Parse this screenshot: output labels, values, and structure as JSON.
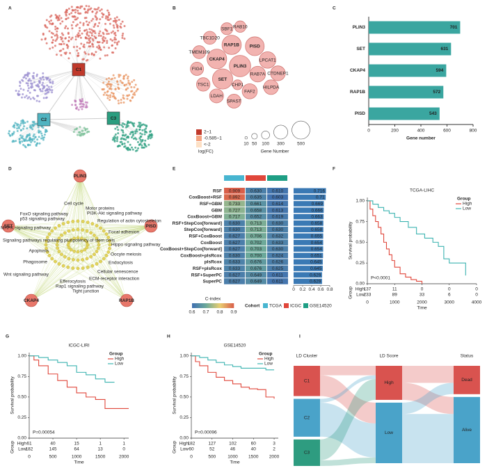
{
  "networks": [
    {
      "panel": "A",
      "clusters": [
        "C1",
        "C2",
        "C3"
      ]
    },
    {
      "panel": "D",
      "hubs": [
        "PLIN3",
        "SET",
        "PISD",
        "CKAP4",
        "RAP1B"
      ],
      "pathways": [
        "Cell cycle",
        "Motor proteins",
        "PI3K-Akt signaling pathway",
        "FoxO signaling pathway",
        "p53 signaling pathway",
        "Regulation of actin cytoskeleton",
        "MAPK signaling pathway",
        "Focal adhesion",
        "Signaling pathways regulating pluripotency of stem cells",
        "Hippo signaling pathway",
        "Apoptosis",
        "Oocyte meiosis",
        "Endocytosis",
        "Phagosome",
        "Cellular senescence",
        "Wnt signaling pathway",
        "Efferocytosis",
        "ECM-receptor interaction",
        "Rap1 signaling pathway",
        "Tight junction"
      ]
    }
  ],
  "chart_data": [
    {
      "type": "bubble",
      "panel": "B",
      "color": "#f2b3b0",
      "categories": [
        "PLIN3",
        "SET",
        "CKAP4",
        "RAP1B",
        "PISD",
        "LPCAT1",
        "RAB7A",
        "FAF2",
        "CTDNEP1",
        "HILPDA",
        "SPAST",
        "LDAH",
        "TSC1",
        "FIG4",
        "TMEM109",
        "TBC1D20",
        "SBF1",
        "RAB10",
        "CHP1"
      ],
      "values": [
        701,
        631,
        594,
        572,
        543,
        420,
        380,
        350,
        340,
        330,
        300,
        300,
        280,
        270,
        260,
        260,
        220,
        200,
        150
      ],
      "color_legend": {
        "title": "log(FC)",
        "labels": [
          "2~1",
          "-0.585~1",
          "<-2"
        ],
        "colors": [
          "#c0392b",
          "#f4a582",
          "#fde0c5"
        ]
      },
      "size_legend": {
        "title": "Gene Number",
        "values": [
          10,
          50,
          100,
          300,
          500
        ]
      }
    },
    {
      "type": "bar",
      "panel": "C",
      "orientation": "horizontal",
      "color": "#3aa6a0",
      "categories": [
        "PLIN3",
        "SET",
        "CKAP4",
        "RAP1B",
        "PISD"
      ],
      "values": [
        701,
        631,
        594,
        572,
        543
      ],
      "xlim": [
        0,
        800
      ],
      "xticks": [
        0,
        200,
        400,
        600,
        800
      ],
      "xlabel": "Gene number"
    },
    {
      "type": "heatmap",
      "panel": "E",
      "categories": [
        "RSF",
        "CoxBoost+RSF",
        "RSF+GBM",
        "GBM",
        "CoxBoost+GBM",
        "RSF+StepCox[forward]",
        "StepCox[forward]",
        "RSF+CoxBoost",
        "CoxBoost",
        "CoxBoost+StepCox[forward]",
        "CoxBoost+plsRcox",
        "plsRcox",
        "RSF+plsRcox",
        "RSF+SuperPC",
        "SuperPC"
      ],
      "series": [
        {
          "name": "TCGA",
          "color": "#47b5d0",
          "values": [
            0.909,
            0.892,
            0.733,
            0.727,
            0.717,
            0.63,
            0.63,
            0.627,
            0.627,
            0.627,
            0.63,
            0.633,
            0.633,
            0.627,
            0.627
          ],
          "value_labels": [
            "0.909",
            "0.892",
            "0.733",
            "0.727",
            "0.717",
            "0.630",
            "0.630",
            "0.627",
            "0.627",
            "0.627",
            "0.630",
            "0.633",
            "0.633",
            "0.627",
            "0.627"
          ]
        },
        {
          "name": "ICGC",
          "color": "#e0463a",
          "values": [
            0.63,
            0.635,
            0.661,
            0.658,
            0.652,
            0.713,
            0.713,
            0.706,
            0.702,
            0.703,
            0.7,
            0.676,
            0.676,
            0.649,
            0.649
          ],
          "value_labels": [
            "0.630",
            "0.635",
            "0.661",
            "0.658",
            "0.652",
            "0.713",
            "0.713",
            "0.706",
            "0.702",
            "0.703",
            "0.700",
            "0.676",
            "0.676",
            "0.649",
            "0.649"
          ]
        },
        {
          "name": "GSE14520",
          "color": "#1e9e84",
          "values": [
            0.61,
            0.603,
            0.614,
            0.613,
            0.619,
            0.63,
            0.63,
            0.632,
            0.633,
            0.63,
            0.624,
            0.626,
            0.625,
            0.611,
            0.611
          ],
          "value_labels": [
            "0.610",
            "0.603",
            "0.614",
            "0.613",
            "0.619",
            "0.630",
            "0.630",
            "0.632",
            "0.633",
            "0.630",
            "0.624",
            "0.626",
            "0.625",
            "0.611",
            "0.611"
          ]
        }
      ],
      "bars": {
        "color": "#3a79b4",
        "values": [
          0.716,
          0.71,
          0.669,
          0.666,
          0.663,
          0.658,
          0.658,
          0.655,
          0.654,
          0.654,
          0.651,
          0.645,
          0.645,
          0.629,
          0.629
        ]
      },
      "xlim": [
        0,
        0.8
      ],
      "xticks": [
        0,
        0.2,
        0.4,
        0.6,
        0.8
      ],
      "colorbar_title": "C-index",
      "clim": [
        0.6,
        0.9
      ],
      "cticks": [
        0.6,
        0.7,
        0.8,
        0.9
      ],
      "colorscale": [
        "#3f6fb0",
        "#6aa89a",
        "#e9cf72",
        "#d95f4a"
      ],
      "legend_title": "Cohort"
    },
    {
      "type": "km",
      "panel": "F",
      "title": "TCGA-LIHC",
      "legend_title": "Group",
      "pvalue": "P<0.0001",
      "xlabel": "Time",
      "ylabel": "Survival probability",
      "xlim": [
        0,
        4000
      ],
      "xticks": [
        0,
        1000,
        2000,
        3000,
        4000
      ],
      "ylim": [
        0,
        1.04
      ],
      "yticks": [
        {
          "value": 0,
          "label": "0.00"
        },
        {
          "value": 0.25,
          "label": "0.25"
        },
        {
          "value": 0.5,
          "label": "0.50"
        },
        {
          "value": 0.75,
          "label": "0.75"
        },
        {
          "value": 1,
          "label": "1.00"
        }
      ],
      "series": [
        {
          "name": "High",
          "color": "#e0463a",
          "x": [
            0,
            100,
            200,
            300,
            400,
            500,
            600,
            700,
            800,
            900,
            1000,
            1200,
            1400,
            1600,
            1800,
            2000
          ],
          "values": [
            1,
            0.9,
            0.82,
            0.75,
            0.68,
            0.6,
            0.5,
            0.42,
            0.35,
            0.28,
            0.2,
            0.12,
            0.08,
            0.05,
            0.03,
            0
          ],
          "at_risk": [
            137,
            11,
            0,
            0,
            0
          ]
        },
        {
          "name": "Low",
          "color": "#3bb3b0",
          "x": [
            0,
            200,
            400,
            600,
            800,
            1000,
            1200,
            1500,
            1800,
            2100,
            2400,
            2600,
            2800,
            3000,
            3300,
            3600
          ],
          "values": [
            1,
            0.96,
            0.92,
            0.88,
            0.85,
            0.8,
            0.75,
            0.68,
            0.6,
            0.55,
            0.5,
            0.45,
            0.3,
            0.25,
            0.25,
            0.1
          ],
          "at_risk": [
            233,
            89,
            33,
            6,
            0
          ]
        }
      ]
    },
    {
      "type": "km",
      "panel": "G",
      "title": "ICGC-LIRI",
      "legend_title": "Group",
      "pvalue": "P=0.00054",
      "xlabel": "Time",
      "ylabel": "Survival probability",
      "xlim": [
        0,
        2100
      ],
      "xticks": [
        0,
        500,
        1000,
        1500,
        2000
      ],
      "ylim": [
        0,
        1.04
      ],
      "yticks": [
        {
          "value": 0,
          "label": "0.00"
        },
        {
          "value": 0.25,
          "label": "0.25"
        },
        {
          "value": 0.5,
          "label": "0.50"
        },
        {
          "value": 0.75,
          "label": "0.75"
        },
        {
          "value": 1,
          "label": "1.00"
        }
      ],
      "series": [
        {
          "name": "High",
          "color": "#e0463a",
          "x": [
            0,
            100,
            200,
            400,
            600,
            800,
            1000,
            1200,
            1400,
            1500,
            1600,
            2100
          ],
          "values": [
            1,
            0.95,
            0.88,
            0.78,
            0.7,
            0.62,
            0.55,
            0.5,
            0.47,
            0.47,
            0.36,
            0.36
          ],
          "at_risk": [
            61,
            40,
            15,
            1,
            1
          ]
        },
        {
          "name": "Low",
          "color": "#3bb3b0",
          "x": [
            0,
            200,
            400,
            600,
            800,
            1000,
            1200,
            1400,
            1600,
            1800
          ],
          "values": [
            1,
            0.98,
            0.95,
            0.92,
            0.88,
            0.8,
            0.77,
            0.72,
            0.68,
            0.68
          ],
          "at_risk": [
            182,
            145,
            64,
            13,
            0
          ]
        }
      ]
    },
    {
      "type": "km",
      "panel": "H",
      "title": "GSE14520",
      "legend_title": "Group",
      "pvalue": "P=0.00096",
      "xlabel": "Time",
      "ylabel": "Survival probability",
      "xlim": [
        0,
        2100
      ],
      "xticks": [
        0,
        500,
        1000,
        1500,
        2000
      ],
      "ylim": [
        0,
        1.04
      ],
      "yticks": [
        {
          "value": 0,
          "label": "0.00"
        },
        {
          "value": 0.25,
          "label": "0.25"
        },
        {
          "value": 0.5,
          "label": "0.50"
        },
        {
          "value": 0.75,
          "label": "0.75"
        },
        {
          "value": 1,
          "label": "1.00"
        }
      ],
      "series": [
        {
          "name": "High",
          "color": "#e0463a",
          "x": [
            0,
            100,
            200,
            400,
            600,
            800,
            1000,
            1200,
            1400,
            1600,
            1800,
            2000
          ],
          "values": [
            1,
            0.93,
            0.88,
            0.8,
            0.74,
            0.7,
            0.66,
            0.62,
            0.6,
            0.59,
            0.5,
            0.48
          ],
          "at_risk": [
            182,
            127,
            102,
            60,
            3
          ]
        },
        {
          "name": "Low",
          "color": "#3bb3b0",
          "x": [
            0,
            200,
            400,
            600,
            800,
            1000,
            1200,
            1400,
            1600,
            1800,
            2000
          ],
          "values": [
            1,
            0.98,
            0.95,
            0.92,
            0.89,
            0.87,
            0.85,
            0.85,
            0.85,
            0.83,
            0.83
          ],
          "at_risk": [
            60,
            52,
            46,
            40,
            2
          ]
        }
      ]
    },
    {
      "type": "sankey",
      "panel": "I",
      "columns": [
        {
          "name": "LD Cluster",
          "nodes": [
            {
              "name": "C1",
              "color": "#d9534f"
            },
            {
              "name": "C2",
              "color": "#4aa3c9"
            },
            {
              "name": "C3",
              "color": "#2e9c80"
            }
          ]
        },
        {
          "name": "LD Score",
          "nodes": [
            {
              "name": "High",
              "color": "#d9534f"
            },
            {
              "name": "Low",
              "color": "#4aa3c9"
            }
          ]
        },
        {
          "name": "Status",
          "nodes": [
            {
              "name": "Dead",
              "color": "#d9534f"
            },
            {
              "name": "Alive",
              "color": "#4aa3c9"
            }
          ]
        }
      ],
      "links": [
        {
          "source": "C1",
          "target": "High",
          "value": 25
        },
        {
          "source": "C1",
          "target": "Low",
          "value": 55
        },
        {
          "source": "C2",
          "target": "High",
          "value": 10
        },
        {
          "source": "C2",
          "target": "Low",
          "value": 90
        },
        {
          "source": "C3",
          "target": "High",
          "value": 55
        },
        {
          "source": "C3",
          "target": "Low",
          "value": 15
        },
        {
          "source": "High",
          "target": "Dead",
          "value": 45
        },
        {
          "source": "High",
          "target": "Alive",
          "value": 45
        },
        {
          "source": "Low",
          "target": "Dead",
          "value": 30
        },
        {
          "source": "Low",
          "target": "Alive",
          "value": 130
        }
      ]
    }
  ]
}
